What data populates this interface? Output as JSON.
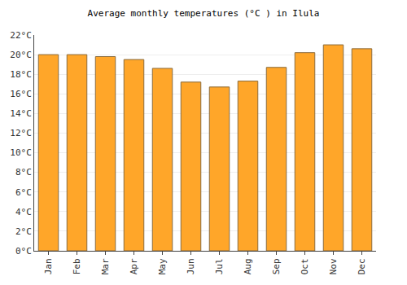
{
  "chart_data": {
    "type": "bar",
    "title": "Average monthly temperatures (°C ) in Ilula",
    "categories": [
      "Jan",
      "Feb",
      "Mar",
      "Apr",
      "May",
      "Jun",
      "Jul",
      "Aug",
      "Sep",
      "Oct",
      "Nov",
      "Dec"
    ],
    "values": [
      20.0,
      20.0,
      19.8,
      19.5,
      18.6,
      17.2,
      16.7,
      17.3,
      18.7,
      20.2,
      21.0,
      20.6
    ],
    "color": "#ffa629",
    "ylim": [
      0,
      22
    ],
    "yticks": [
      {
        "value": 0,
        "label": "0°C"
      },
      {
        "value": 2,
        "label": "2°C"
      },
      {
        "value": 4,
        "label": "4°C"
      },
      {
        "value": 6,
        "label": "6°C"
      },
      {
        "value": 8,
        "label": "8°C"
      },
      {
        "value": 10,
        "label": "10°C"
      },
      {
        "value": 12,
        "label": "12°C"
      },
      {
        "value": 14,
        "label": "14°C"
      },
      {
        "value": 16,
        "label": "16°C"
      },
      {
        "value": 18,
        "label": "18°C"
      },
      {
        "value": 20,
        "label": "20°C"
      },
      {
        "value": 22,
        "label": "22°C"
      }
    ],
    "grid": true
  }
}
